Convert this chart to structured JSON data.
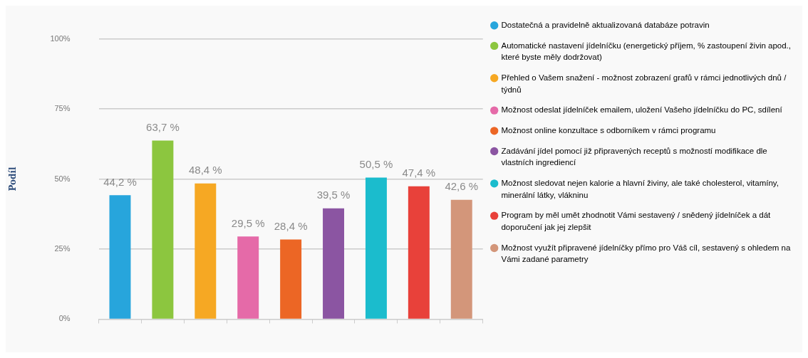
{
  "chart_data": {
    "type": "bar",
    "ylabel": "Podíl",
    "categories": [
      null,
      null,
      null,
      null,
      null,
      null,
      null,
      null,
      null
    ],
    "series": [
      {
        "name": "Dostatečná a pravidelně aktualizovaná databáze potravin",
        "color": "#27a5dc",
        "values": [
          44.2,
          null,
          null,
          null,
          null,
          null,
          null,
          null,
          null
        ],
        "value_labels": [
          "44,2 %",
          null,
          null,
          null,
          null,
          null,
          null,
          null,
          null
        ]
      },
      {
        "name": "Automatické nastavení jídelníčku (energetický příjem, % zastoupení živin apod., které byste měly dodržovat)",
        "color": "#8cc63f",
        "values": [
          null,
          63.7,
          null,
          null,
          null,
          null,
          null,
          null,
          null
        ],
        "value_labels": [
          null,
          "63,7 %",
          null,
          null,
          null,
          null,
          null,
          null,
          null
        ]
      },
      {
        "name": "Přehled o Vašem snažení - možnost zobrazení grafů v rámci jednotlivých dnů / týdnů",
        "color": "#f6a823",
        "values": [
          null,
          null,
          48.4,
          null,
          null,
          null,
          null,
          null,
          null
        ],
        "value_labels": [
          null,
          null,
          "48,4 %",
          null,
          null,
          null,
          null,
          null,
          null
        ]
      },
      {
        "name": "Možnost odeslat jídelníček emailem, uložení Vašeho jídelníčku do PC, sdílení",
        "color": "#e56aa8",
        "values": [
          null,
          null,
          null,
          29.5,
          null,
          null,
          null,
          null,
          null
        ],
        "value_labels": [
          null,
          null,
          null,
          "29,5 %",
          null,
          null,
          null,
          null,
          null
        ]
      },
      {
        "name": "Možnost online konzultace s odborníkem v rámci programu",
        "color": "#ec6625",
        "values": [
          null,
          null,
          null,
          null,
          28.4,
          null,
          null,
          null,
          null
        ],
        "value_labels": [
          null,
          null,
          null,
          null,
          "28,4 %",
          null,
          null,
          null,
          null
        ]
      },
      {
        "name": "Zadávání jídel pomocí již připravených receptů s možností modifikace dle vlastních ingrediencí",
        "color": "#8b55a2",
        "values": [
          null,
          null,
          null,
          null,
          null,
          39.5,
          null,
          null,
          null
        ],
        "value_labels": [
          null,
          null,
          null,
          null,
          null,
          "39,5 %",
          null,
          null,
          null
        ]
      },
      {
        "name": "Možnost sledovat nejen kalorie a hlavní živiny, ale také cholesterol, vitamíny, minerální látky, vlákninu",
        "color": "#1bbccd",
        "values": [
          null,
          null,
          null,
          null,
          null,
          null,
          50.5,
          null,
          null
        ],
        "value_labels": [
          null,
          null,
          null,
          null,
          null,
          null,
          "50,5 %",
          null,
          null
        ]
      },
      {
        "name": "Program by měl umět zhodnotit Vámi sestavený / snědený jídelníček a dát doporučení jak jej zlepšit",
        "color": "#e8413a",
        "values": [
          null,
          null,
          null,
          null,
          null,
          null,
          null,
          47.4,
          null
        ],
        "value_labels": [
          null,
          null,
          null,
          null,
          null,
          null,
          null,
          "47,4 %",
          null
        ]
      },
      {
        "name": "Možnost využít připravené jídelníčky přímo pro Váš cíl, sestavený s ohledem na Vámi zadané parametry",
        "color": "#d3967a",
        "values": [
          null,
          null,
          null,
          null,
          null,
          null,
          null,
          null,
          42.6
        ],
        "value_labels": [
          null,
          null,
          null,
          null,
          null,
          null,
          null,
          null,
          "42,6 %"
        ]
      }
    ],
    "ylim": [
      0,
      100
    ],
    "yticks": [
      {
        "value": 0,
        "label": "0%"
      },
      {
        "value": 25,
        "label": "25%"
      },
      {
        "value": 50,
        "label": "50%"
      },
      {
        "value": 75,
        "label": "75%"
      },
      {
        "value": 100,
        "label": "100%"
      }
    ],
    "grid": "y",
    "legend": "right",
    "tick_labels": "y"
  }
}
